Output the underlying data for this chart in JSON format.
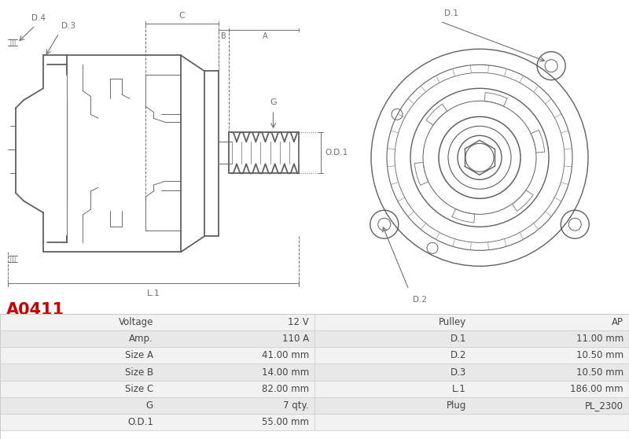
{
  "title": "A0411",
  "title_color": "#cc0000",
  "background_color": "#ffffff",
  "table_row_bg1": "#f2f2f2",
  "table_row_bg2": "#e8e8e8",
  "table_border_color": "#cccccc",
  "table_text_color": "#444444",
  "rows_left": [
    [
      "Voltage",
      "12 V"
    ],
    [
      "Amp.",
      "110 A"
    ],
    [
      "Size A",
      "41.00 mm"
    ],
    [
      "Size B",
      "14.00 mm"
    ],
    [
      "Size C",
      "82.00 mm"
    ],
    [
      "G",
      "7 qty."
    ],
    [
      "O.D.1",
      "55.00 mm"
    ]
  ],
  "rows_right": [
    [
      "Pulley",
      "AP"
    ],
    [
      "D.1",
      "11.00 mm"
    ],
    [
      "D.2",
      "10.50 mm"
    ],
    [
      "D.3",
      "10.50 mm"
    ],
    [
      "L.1",
      "186.00 mm"
    ],
    [
      "Plug",
      "PL_2300"
    ],
    [
      "",
      ""
    ]
  ],
  "lc": "#606060",
  "lc_dim": "#707070",
  "lw_main": 1.3,
  "lw_thin": 0.65,
  "lw_dim": 0.7
}
